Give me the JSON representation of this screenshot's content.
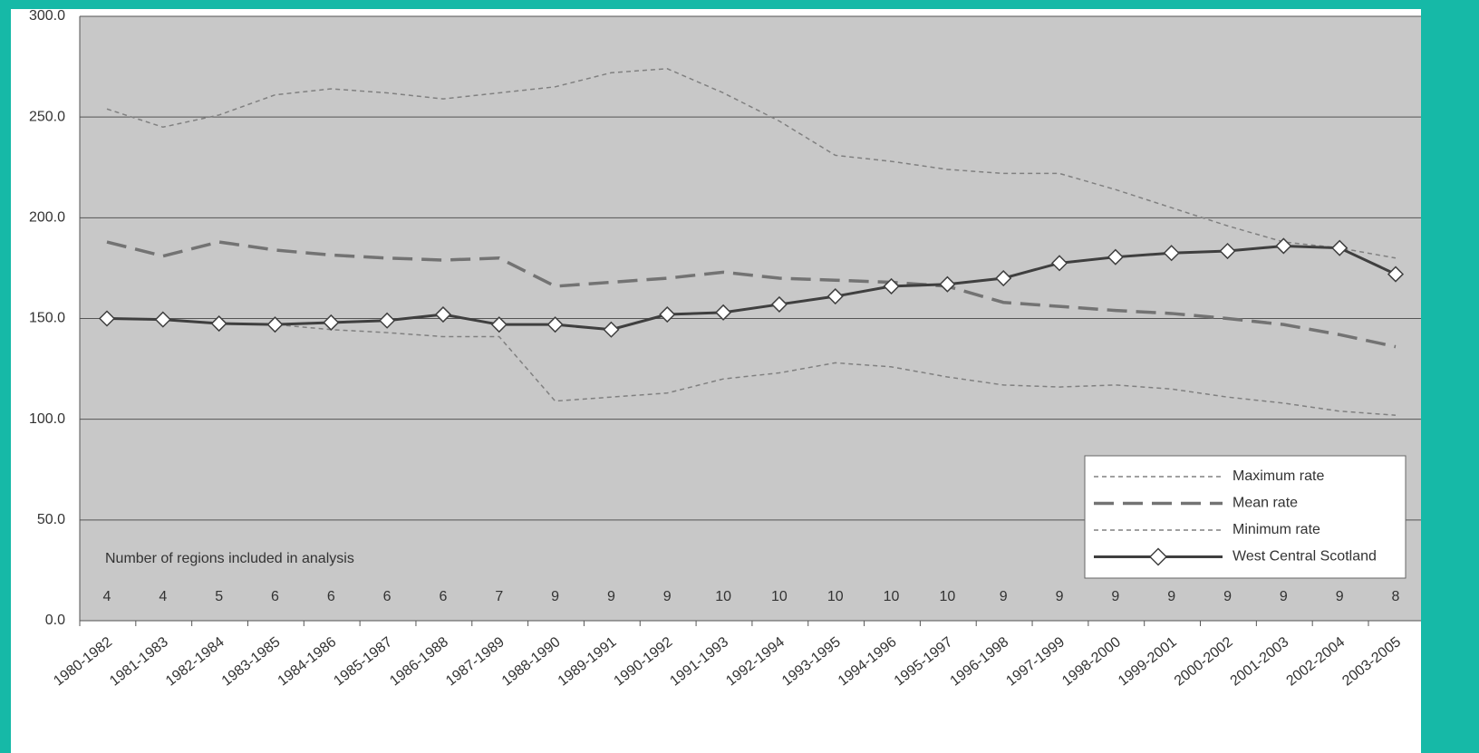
{
  "chart_data": {
    "type": "line",
    "categories": [
      "1980-1982",
      "1981-1983",
      "1982-1984",
      "1983-1985",
      "1984-1986",
      "1985-1987",
      "1986-1988",
      "1987-1989",
      "1988-1990",
      "1989-1991",
      "1990-1992",
      "1991-1993",
      "1992-1994",
      "1993-1995",
      "1994-1996",
      "1995-1997",
      "1996-1998",
      "1997-1999",
      "1998-2000",
      "1999-2001",
      "2000-2002",
      "2001-2003",
      "2002-2004",
      "2003-2005"
    ],
    "series": [
      {
        "name": "Maximum rate",
        "color": "#808080",
        "dash": "5 4",
        "width": 1.5,
        "values": [
          254,
          245,
          251,
          261,
          264,
          262,
          259,
          262,
          265,
          272,
          274,
          262,
          248,
          231,
          228,
          224,
          222,
          222,
          214,
          205,
          196,
          188,
          185,
          180
        ]
      },
      {
        "name": "Mean rate",
        "color": "#737373",
        "dash": "22 10",
        "width": 3.5,
        "values": [
          188,
          181,
          188,
          184,
          181.5,
          180,
          179,
          180,
          166,
          168,
          170,
          173,
          170,
          169,
          168,
          166,
          158,
          156,
          154,
          152.5,
          150,
          147,
          142,
          136
        ]
      },
      {
        "name": "Minimum rate",
        "color": "#808080",
        "dash": "5 4",
        "width": 1.5,
        "values": [
          150,
          149.5,
          147.5,
          147,
          144.5,
          143,
          141,
          141,
          109,
          111,
          113,
          120,
          123,
          128,
          126,
          121,
          117,
          116,
          117,
          115,
          111,
          108,
          104,
          102
        ]
      },
      {
        "name": "West Central Scotland",
        "color": "#3f3f3f",
        "dash": "none",
        "width": 3,
        "marker": "diamond",
        "values": [
          150,
          149.5,
          147.5,
          147,
          148,
          149,
          152,
          147,
          147,
          144.5,
          152,
          153,
          157,
          161,
          166,
          167,
          170,
          177.5,
          180.5,
          182.5,
          183.5,
          186,
          185,
          172
        ]
      }
    ],
    "ylim": [
      0,
      300
    ],
    "yticks": [
      {
        "value": 0,
        "label": "0.0"
      },
      {
        "value": 50,
        "label": "50.0"
      },
      {
        "value": 100,
        "label": "100.0"
      },
      {
        "value": 150,
        "label": "150.0"
      },
      {
        "value": 200,
        "label": "200.0"
      },
      {
        "value": 250,
        "label": "250.0"
      },
      {
        "value": 300,
        "label": "300.0"
      }
    ],
    "grid": true,
    "legend": "lower right",
    "annotation": "Number of regions included in analysis",
    "region_counts": [
      4,
      4,
      5,
      6,
      6,
      6,
      6,
      7,
      9,
      9,
      9,
      10,
      10,
      10,
      10,
      10,
      9,
      9,
      9,
      9,
      9,
      9,
      9,
      8
    ]
  }
}
